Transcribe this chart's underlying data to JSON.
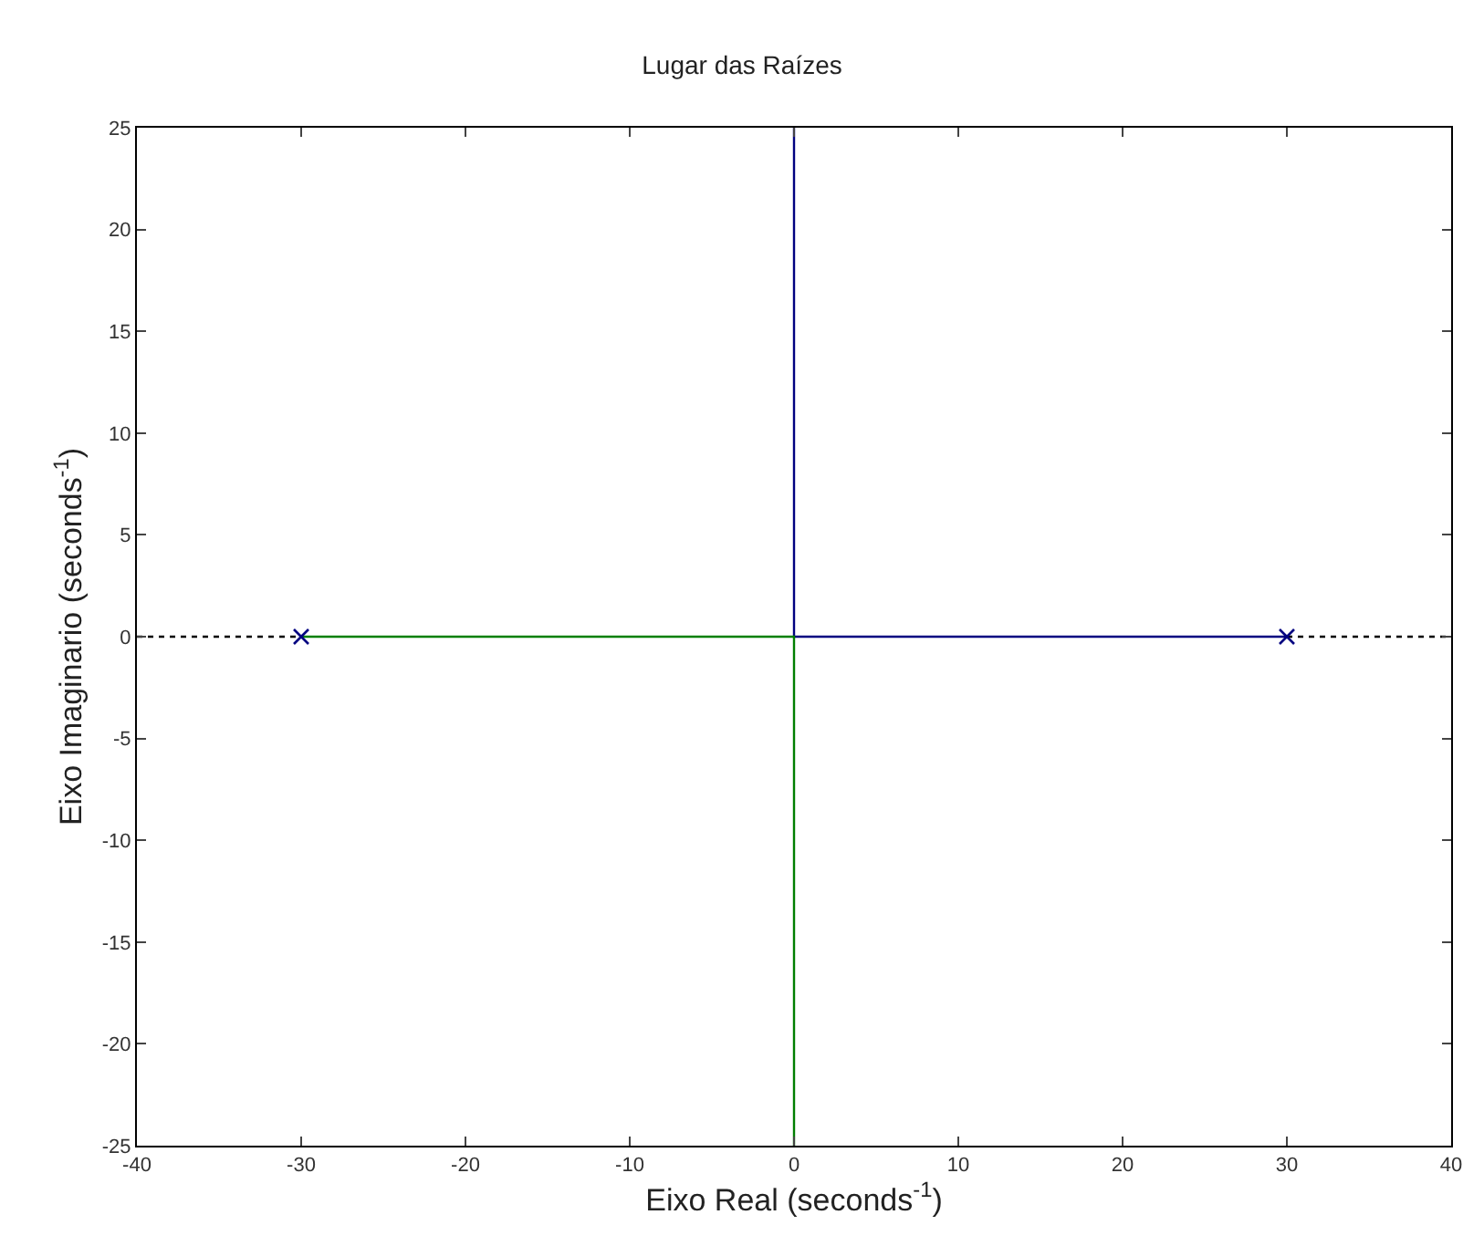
{
  "chart_data": {
    "type": "line",
    "title": "Lugar das Raízes",
    "xlabel": "Eixo Real (seconds$^{-1}$)",
    "ylabel": "Eixo Imaginario (seconds$^{-1}$)",
    "series": [
      {
        "color": "#000080",
        "x": [
          30,
          0,
          0
        ],
        "values": [
          0,
          0,
          25
        ],
        "line_style": "solid",
        "marker": "none"
      },
      {
        "color": "#007f00",
        "x": [
          -30,
          0,
          0
        ],
        "values": [
          0,
          0,
          -25
        ],
        "line_style": "solid",
        "marker": "none"
      },
      {
        "color": "#000000",
        "x": [
          -40,
          -30,
          0,
          30,
          40
        ],
        "values": [
          0,
          0,
          null,
          0,
          0
        ],
        "line_style": "dotted",
        "marker": "none"
      },
      {
        "type": "scatter",
        "color": "#000080",
        "x": [
          -30,
          30
        ],
        "values": [
          0,
          0
        ],
        "marker": "cross"
      }
    ],
    "xlim": [
      -40,
      40
    ],
    "xticks": [
      -40,
      -30,
      -20,
      -10,
      0,
      10,
      20,
      30,
      40
    ],
    "ylim": [
      -25,
      25
    ],
    "yticks": [
      -25,
      -20,
      -15,
      -10,
      -5,
      0,
      5,
      10,
      15,
      20,
      25
    ]
  }
}
